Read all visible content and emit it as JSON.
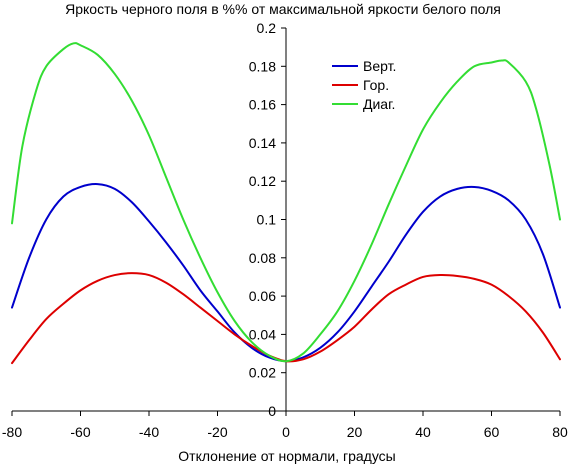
{
  "chart_data": {
    "type": "line",
    "title": "Яркость черного поля в %% от максимальной яркости белого поля",
    "xlabel": "Отклонение от нормали, градусы",
    "ylabel": "",
    "xlim": [
      -80,
      80
    ],
    "ylim": [
      0,
      0.2
    ],
    "x_ticks": [
      "-80",
      "-60",
      "-40",
      "-20",
      "0",
      "20",
      "40",
      "60",
      "80"
    ],
    "y_ticks": [
      "0",
      "0.02",
      "0.04",
      "0.06",
      "0.08",
      "0.1",
      "0.12",
      "0.14",
      "0.16",
      "0.18",
      "0.2"
    ],
    "grid": false,
    "legend_position": "top-right",
    "series": [
      {
        "name": "Верт.",
        "color": "#0000cc",
        "x": [
          -80,
          -75,
          -70,
          -65,
          -60,
          -55,
          -50,
          -45,
          -40,
          -35,
          -30,
          -25,
          -20,
          -15,
          -10,
          -5,
          0,
          5,
          10,
          15,
          20,
          25,
          30,
          35,
          40,
          45,
          50,
          55,
          60,
          65,
          70,
          75,
          80
        ],
        "y": [
          0.054,
          0.08,
          0.1,
          0.112,
          0.117,
          0.1185,
          0.116,
          0.109,
          0.099,
          0.088,
          0.076,
          0.063,
          0.052,
          0.041,
          0.033,
          0.028,
          0.026,
          0.028,
          0.033,
          0.041,
          0.052,
          0.065,
          0.078,
          0.092,
          0.104,
          0.112,
          0.116,
          0.117,
          0.115,
          0.11,
          0.1,
          0.082,
          0.054
        ]
      },
      {
        "name": "Гор.",
        "color": "#dd0000",
        "x": [
          -80,
          -75,
          -70,
          -65,
          -60,
          -55,
          -50,
          -45,
          -40,
          -35,
          -30,
          -25,
          -20,
          -15,
          -10,
          -5,
          0,
          5,
          10,
          15,
          20,
          25,
          30,
          35,
          40,
          45,
          50,
          55,
          60,
          65,
          70,
          75,
          80
        ],
        "y": [
          0.025,
          0.037,
          0.048,
          0.056,
          0.063,
          0.068,
          0.071,
          0.072,
          0.071,
          0.067,
          0.061,
          0.054,
          0.047,
          0.04,
          0.034,
          0.029,
          0.026,
          0.027,
          0.031,
          0.037,
          0.044,
          0.053,
          0.061,
          0.066,
          0.07,
          0.071,
          0.0705,
          0.069,
          0.066,
          0.06,
          0.052,
          0.041,
          0.027
        ]
      },
      {
        "name": "Диаг.",
        "color": "#33dd33",
        "x": [
          -80,
          -77,
          -73,
          -70,
          -65,
          -62,
          -60,
          -55,
          -50,
          -45,
          -40,
          -35,
          -30,
          -25,
          -20,
          -15,
          -10,
          -5,
          0,
          5,
          10,
          15,
          20,
          25,
          30,
          35,
          40,
          45,
          50,
          55,
          60,
          63,
          65,
          70,
          73,
          77,
          80
        ],
        "y": [
          0.098,
          0.138,
          0.167,
          0.18,
          0.189,
          0.192,
          0.191,
          0.186,
          0.176,
          0.162,
          0.144,
          0.122,
          0.1,
          0.08,
          0.062,
          0.047,
          0.036,
          0.029,
          0.026,
          0.03,
          0.04,
          0.052,
          0.068,
          0.087,
          0.108,
          0.128,
          0.147,
          0.161,
          0.172,
          0.18,
          0.182,
          0.183,
          0.182,
          0.172,
          0.158,
          0.128,
          0.1
        ]
      }
    ]
  }
}
